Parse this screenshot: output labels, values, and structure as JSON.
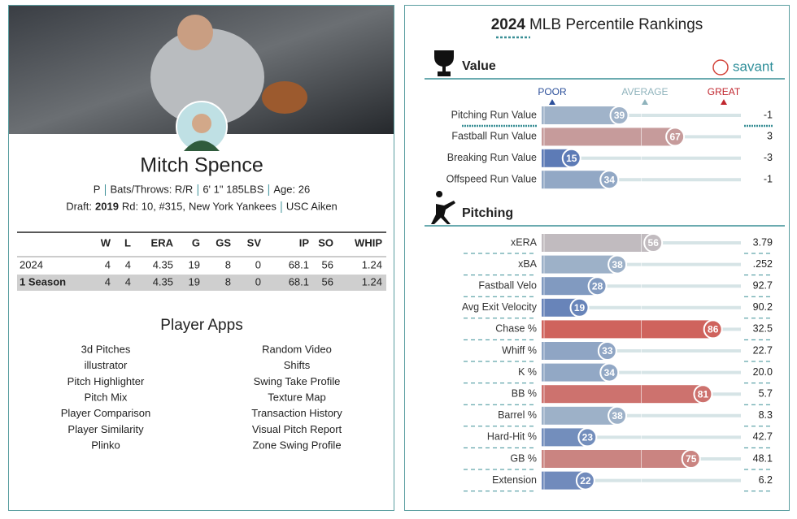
{
  "player": {
    "name": "Mitch Spence",
    "info": [
      "P",
      "Bats/Throws: R/R",
      "6' 1\" 185LBS",
      "Age: 26"
    ],
    "draft": {
      "label": "Draft:",
      "year": "2019",
      "round": "Rd: 10, #315,",
      "team": "New York Yankees",
      "school": "USC Aiken"
    }
  },
  "stats_table": {
    "columns": [
      "W",
      "L",
      "ERA",
      "G",
      "GS",
      "SV",
      "IP",
      "SO",
      "WHIP"
    ],
    "rows": [
      {
        "label": "2024",
        "values": [
          4,
          4,
          4.35,
          19,
          8,
          0,
          68.1,
          56,
          1.24
        ]
      },
      {
        "label": "1 Season",
        "values": [
          4,
          4,
          4.35,
          19,
          8,
          0,
          68.1,
          56,
          1.24
        ]
      }
    ]
  },
  "player_apps": {
    "title": "Player Apps",
    "left": [
      "3d Pitches",
      "illustrator",
      "Pitch Highlighter",
      "Pitch Mix",
      "Player Comparison",
      "Player Similarity",
      "Plinko"
    ],
    "right": [
      "Random Video",
      "Shifts",
      "Swing Take Profile",
      "Texture Map",
      "Transaction History",
      "Visual Pitch Report",
      "Zone Swing Profile"
    ]
  },
  "rankings": {
    "year": "2024",
    "title": "MLB Percentile Rankings",
    "logo": "savant",
    "scale": [
      "POOR",
      "AVERAGE",
      "GREAT"
    ],
    "sections": [
      {
        "name": "Value",
        "rows": [
          {
            "label": "Pitching Run Value",
            "percentile": 39,
            "value": "-1"
          },
          {
            "label": "Fastball Run Value",
            "percentile": 67,
            "value": "3"
          },
          {
            "label": "Breaking Run Value",
            "percentile": 15,
            "value": "-3"
          },
          {
            "label": "Offspeed Run Value",
            "percentile": 34,
            "value": "-1"
          }
        ]
      },
      {
        "name": "Pitching",
        "rows": [
          {
            "label": "xERA",
            "percentile": 56,
            "value": "3.79"
          },
          {
            "label": "xBA",
            "percentile": 38,
            "value": ".252"
          },
          {
            "label": "Fastball Velo",
            "percentile": 28,
            "value": "92.7"
          },
          {
            "label": "Avg Exit Velocity",
            "percentile": 19,
            "value": "90.2"
          },
          {
            "label": "Chase %",
            "percentile": 86,
            "value": "32.5"
          },
          {
            "label": "Whiff %",
            "percentile": 33,
            "value": "22.7"
          },
          {
            "label": "K %",
            "percentile": 34,
            "value": "20.0"
          },
          {
            "label": "BB %",
            "percentile": 81,
            "value": "5.7"
          },
          {
            "label": "Barrel %",
            "percentile": 38,
            "value": "8.3"
          },
          {
            "label": "Hard-Hit %",
            "percentile": 23,
            "value": "42.7"
          },
          {
            "label": "GB %",
            "percentile": 75,
            "value": "48.1"
          },
          {
            "label": "Extension",
            "percentile": 22,
            "value": "6.2"
          }
        ]
      }
    ]
  }
}
